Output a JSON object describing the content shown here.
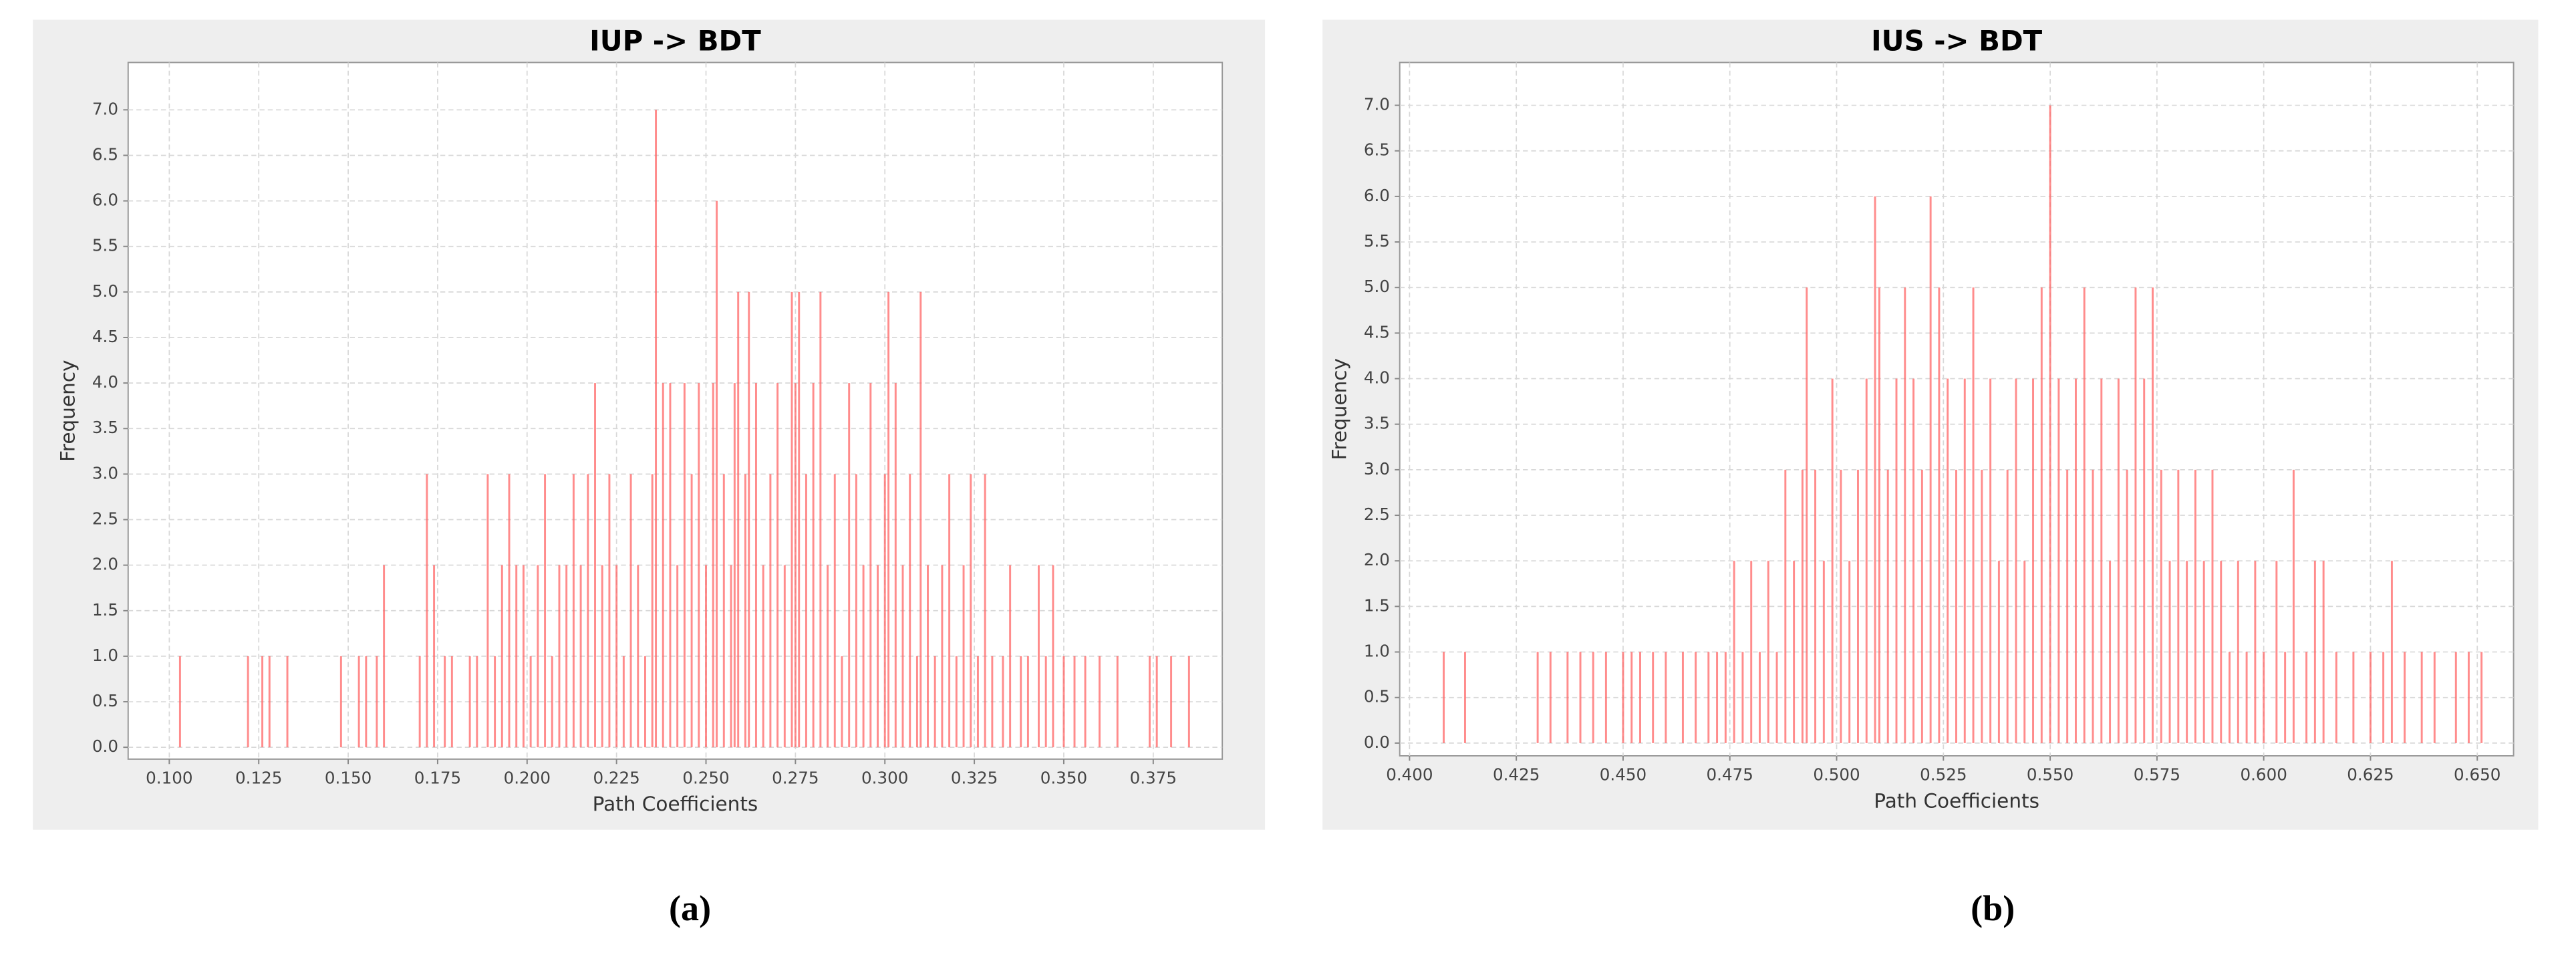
{
  "chart_data": [
    {
      "type": "bar",
      "title": "IUP -> BDT",
      "xlabel": "Path Coefficients",
      "ylabel": "Frequency",
      "caption": "(a)",
      "color": "#ff6666",
      "grid": true,
      "xlim": [
        0.0885,
        0.3943
      ],
      "ylim": [
        -0.13,
        7.52
      ],
      "xticks": [
        {
          "value": 0.1,
          "label": "0.100"
        },
        {
          "value": 0.125,
          "label": "0.125"
        },
        {
          "value": 0.15,
          "label": "0.150"
        },
        {
          "value": 0.175,
          "label": "0.175"
        },
        {
          "value": 0.2,
          "label": "0.200"
        },
        {
          "value": 0.225,
          "label": "0.225"
        },
        {
          "value": 0.25,
          "label": "0.250"
        },
        {
          "value": 0.275,
          "label": "0.275"
        },
        {
          "value": 0.3,
          "label": "0.300"
        },
        {
          "value": 0.325,
          "label": "0.325"
        },
        {
          "value": 0.35,
          "label": "0.350"
        },
        {
          "value": 0.375,
          "label": "0.375"
        }
      ],
      "yticks": [
        {
          "value": 0,
          "label": "0.0"
        },
        0.5,
        {
          "value": 1,
          "label": "1.0"
        },
        1.5,
        {
          "value": 2,
          "label": "2.0"
        },
        2.5,
        {
          "value": 3,
          "label": "3.0"
        },
        3.5,
        {
          "value": 4,
          "label": "4.0"
        },
        4.5,
        {
          "value": 5,
          "label": "5.0"
        },
        5.5,
        {
          "value": 6,
          "label": "6.0"
        },
        6.5,
        {
          "value": 7,
          "label": "7.0"
        }
      ],
      "x": [
        0.103,
        0.122,
        0.126,
        0.128,
        0.133,
        0.148,
        0.153,
        0.155,
        0.158,
        0.16,
        0.17,
        0.172,
        0.174,
        0.177,
        0.179,
        0.184,
        0.186,
        0.189,
        0.191,
        0.193,
        0.195,
        0.197,
        0.199,
        0.201,
        0.203,
        0.205,
        0.207,
        0.209,
        0.211,
        0.213,
        0.215,
        0.217,
        0.219,
        0.221,
        0.223,
        0.225,
        0.227,
        0.229,
        0.231,
        0.233,
        0.235,
        0.236,
        0.238,
        0.24,
        0.242,
        0.244,
        0.246,
        0.248,
        0.25,
        0.252,
        0.253,
        0.255,
        0.257,
        0.258,
        0.259,
        0.261,
        0.262,
        0.264,
        0.266,
        0.268,
        0.27,
        0.272,
        0.274,
        0.275,
        0.276,
        0.278,
        0.28,
        0.282,
        0.284,
        0.286,
        0.288,
        0.29,
        0.292,
        0.294,
        0.296,
        0.298,
        0.3,
        0.301,
        0.303,
        0.305,
        0.307,
        0.309,
        0.31,
        0.312,
        0.314,
        0.316,
        0.318,
        0.32,
        0.322,
        0.324,
        0.326,
        0.328,
        0.33,
        0.333,
        0.335,
        0.338,
        0.34,
        0.343,
        0.345,
        0.347,
        0.35,
        0.353,
        0.356,
        0.36,
        0.365,
        0.374,
        0.376,
        0.38,
        0.385
      ],
      "values": [
        1,
        1,
        1,
        1,
        1,
        1,
        1,
        1,
        1,
        2,
        1,
        3,
        2,
        1,
        1,
        1,
        1,
        3,
        1,
        2,
        3,
        2,
        2,
        1,
        2,
        3,
        1,
        2,
        2,
        3,
        2,
        3,
        4,
        2,
        3,
        2,
        1,
        3,
        2,
        1,
        3,
        7,
        4,
        4,
        2,
        4,
        3,
        4,
        2,
        4,
        6,
        3,
        2,
        4,
        5,
        3,
        5,
        4,
        2,
        3,
        4,
        2,
        5,
        4,
        5,
        3,
        4,
        5,
        2,
        3,
        1,
        4,
        3,
        2,
        4,
        2,
        3,
        5,
        4,
        2,
        3,
        1,
        5,
        2,
        1,
        2,
        3,
        1,
        2,
        3,
        1,
        3,
        1,
        1,
        2,
        1,
        1,
        2,
        1,
        2,
        1,
        1,
        1,
        1,
        1,
        1,
        1,
        1,
        1
      ]
    },
    {
      "type": "bar",
      "title": "IUS -> BDT",
      "xlabel": "Path Coefficients",
      "ylabel": "Frequency",
      "caption": "(b)",
      "color": "#ff6666",
      "grid": true,
      "xlim": [
        0.3977,
        0.6585
      ],
      "ylim": [
        -0.14,
        7.47
      ],
      "xticks": [
        {
          "value": 0.4,
          "label": "0.400"
        },
        {
          "value": 0.425,
          "label": "0.425"
        },
        {
          "value": 0.45,
          "label": "0.450"
        },
        {
          "value": 0.475,
          "label": "0.475"
        },
        {
          "value": 0.5,
          "label": "0.500"
        },
        {
          "value": 0.525,
          "label": "0.525"
        },
        {
          "value": 0.55,
          "label": "0.550"
        },
        {
          "value": 0.575,
          "label": "0.575"
        },
        {
          "value": 0.6,
          "label": "0.600"
        },
        {
          "value": 0.625,
          "label": "0.625"
        },
        {
          "value": 0.65,
          "label": "0.650"
        }
      ],
      "yticks": [
        {
          "value": 0,
          "label": "0.0"
        },
        0.5,
        {
          "value": 1,
          "label": "1.0"
        },
        1.5,
        {
          "value": 2,
          "label": "2.0"
        },
        2.5,
        {
          "value": 3,
          "label": "3.0"
        },
        3.5,
        {
          "value": 4,
          "label": "4.0"
        },
        4.5,
        {
          "value": 5,
          "label": "5.0"
        },
        5.5,
        {
          "value": 6,
          "label": "6.0"
        },
        6.5,
        {
          "value": 7,
          "label": "7.0"
        }
      ],
      "x": [
        0.408,
        0.413,
        0.43,
        0.433,
        0.437,
        0.44,
        0.443,
        0.446,
        0.45,
        0.452,
        0.454,
        0.457,
        0.46,
        0.464,
        0.467,
        0.47,
        0.472,
        0.474,
        0.476,
        0.478,
        0.48,
        0.482,
        0.484,
        0.486,
        0.488,
        0.49,
        0.492,
        0.493,
        0.495,
        0.497,
        0.499,
        0.501,
        0.503,
        0.505,
        0.507,
        0.509,
        0.51,
        0.512,
        0.514,
        0.516,
        0.518,
        0.52,
        0.522,
        0.524,
        0.526,
        0.528,
        0.53,
        0.532,
        0.534,
        0.536,
        0.538,
        0.54,
        0.542,
        0.544,
        0.546,
        0.548,
        0.55,
        0.552,
        0.554,
        0.556,
        0.558,
        0.56,
        0.562,
        0.564,
        0.566,
        0.568,
        0.57,
        0.572,
        0.574,
        0.576,
        0.578,
        0.58,
        0.582,
        0.584,
        0.586,
        0.588,
        0.59,
        0.592,
        0.594,
        0.596,
        0.598,
        0.6,
        0.603,
        0.605,
        0.607,
        0.61,
        0.612,
        0.614,
        0.617,
        0.621,
        0.625,
        0.628,
        0.63,
        0.633,
        0.637,
        0.64,
        0.645,
        0.648,
        0.651
      ],
      "values": [
        1,
        1,
        1,
        1,
        1,
        1,
        1,
        1,
        1,
        1,
        1,
        1,
        1,
        1,
        1,
        1,
        1,
        1,
        2,
        1,
        2,
        1,
        2,
        1,
        3,
        2,
        3,
        5,
        3,
        2,
        4,
        3,
        2,
        3,
        4,
        6,
        5,
        3,
        4,
        5,
        4,
        3,
        6,
        5,
        4,
        3,
        4,
        5,
        3,
        4,
        2,
        3,
        4,
        2,
        4,
        5,
        7,
        4,
        3,
        4,
        5,
        3,
        4,
        2,
        4,
        3,
        5,
        4,
        5,
        3,
        2,
        3,
        2,
        3,
        2,
        3,
        2,
        1,
        2,
        1,
        2,
        1,
        2,
        1,
        3,
        1,
        2,
        2,
        1,
        1,
        1,
        1,
        2,
        1,
        1,
        1,
        1,
        1,
        1
      ]
    }
  ]
}
